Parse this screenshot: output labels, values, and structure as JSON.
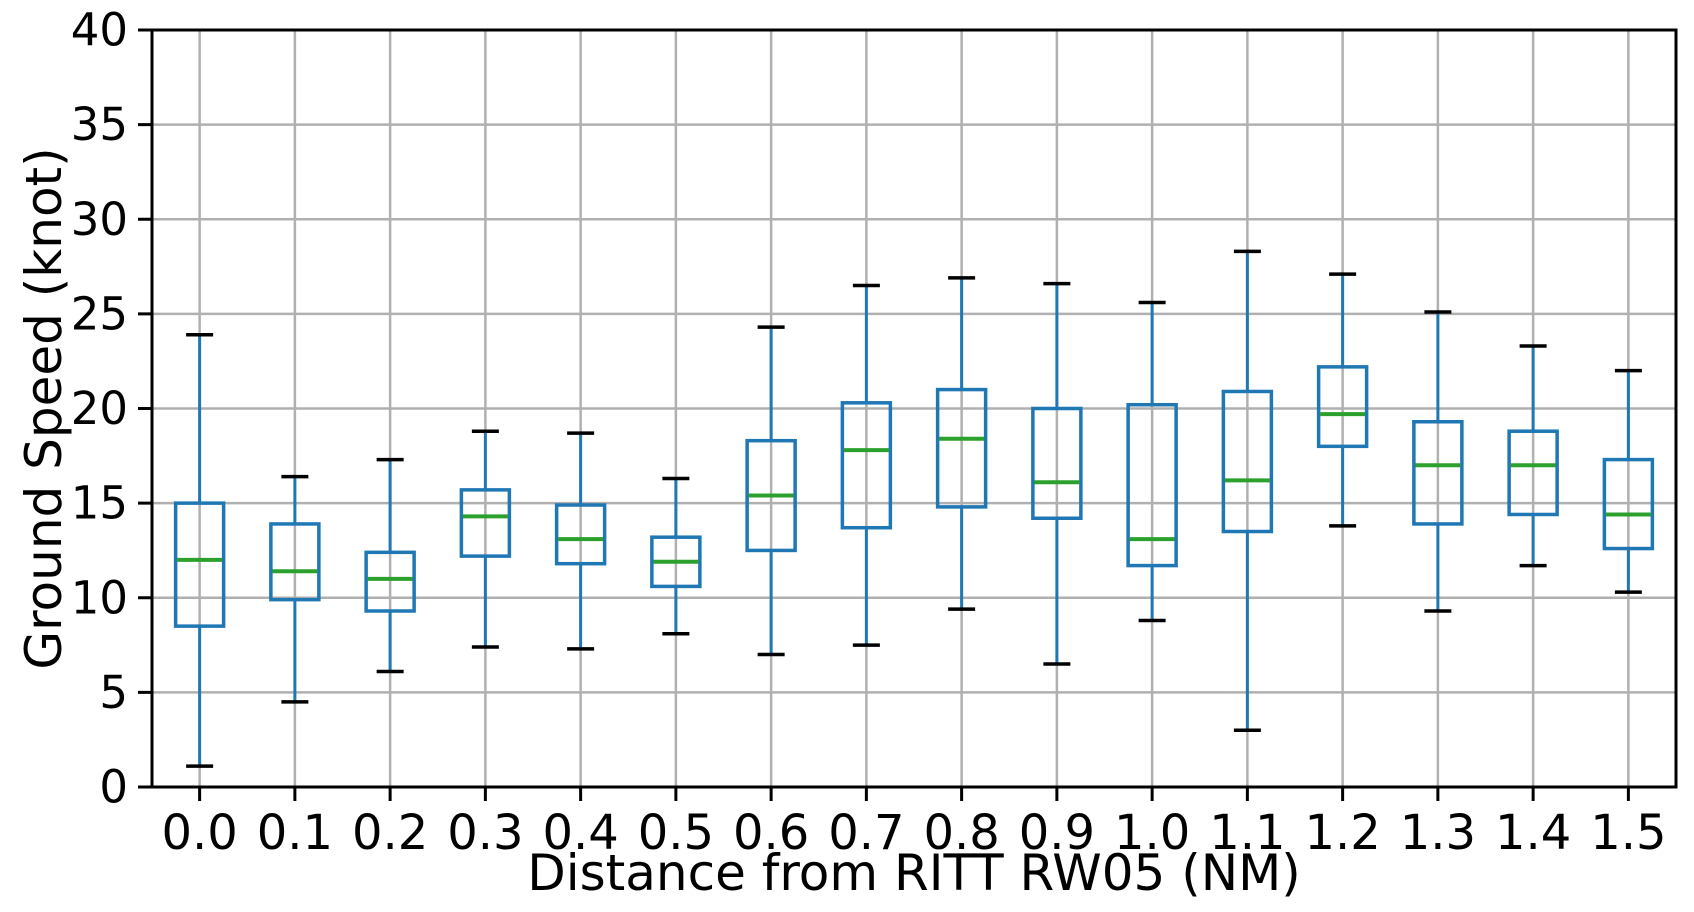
{
  "chart_data": {
    "type": "boxplot",
    "title": "",
    "xlabel": "Distance from RITT RW05 (NM)",
    "ylabel": "Ground Speed (knot)",
    "x_tick_labels": [
      "0.0",
      "0.1",
      "0.2",
      "0.3",
      "0.4",
      "0.5",
      "0.6",
      "0.7",
      "0.8",
      "0.9",
      "1.0",
      "1.1",
      "1.2",
      "1.3",
      "1.4",
      "1.5"
    ],
    "y_ticks": [
      0,
      5,
      10,
      15,
      20,
      25,
      30,
      35,
      40
    ],
    "ylim": [
      0,
      40
    ],
    "grid": true,
    "legend": "none",
    "colors": {
      "box": "#1f77b4",
      "whisker": "#1f77b4",
      "cap": "#000000",
      "median": "#2ca02c",
      "grid": "#b0b0b0",
      "spine": "#000000",
      "background": "#ffffff"
    },
    "series": [
      {
        "x": "0.0",
        "whislo": 1.1,
        "q1": 8.5,
        "med": 12.0,
        "q3": 15.0,
        "whishi": 23.9
      },
      {
        "x": "0.1",
        "whislo": 4.5,
        "q1": 9.9,
        "med": 11.4,
        "q3": 13.9,
        "whishi": 16.4
      },
      {
        "x": "0.2",
        "whislo": 6.1,
        "q1": 9.3,
        "med": 11.0,
        "q3": 12.4,
        "whishi": 17.3
      },
      {
        "x": "0.3",
        "whislo": 7.4,
        "q1": 12.2,
        "med": 14.3,
        "q3": 15.7,
        "whishi": 18.8
      },
      {
        "x": "0.4",
        "whislo": 7.3,
        "q1": 11.8,
        "med": 13.1,
        "q3": 14.9,
        "whishi": 18.7
      },
      {
        "x": "0.5",
        "whislo": 8.1,
        "q1": 10.6,
        "med": 11.9,
        "q3": 13.2,
        "whishi": 16.3
      },
      {
        "x": "0.6",
        "whislo": 7.0,
        "q1": 12.5,
        "med": 15.4,
        "q3": 18.3,
        "whishi": 24.3
      },
      {
        "x": "0.7",
        "whislo": 7.5,
        "q1": 13.7,
        "med": 17.8,
        "q3": 20.3,
        "whishi": 26.5
      },
      {
        "x": "0.8",
        "whislo": 9.4,
        "q1": 14.8,
        "med": 18.4,
        "q3": 21.0,
        "whishi": 26.9
      },
      {
        "x": "0.9",
        "whislo": 6.5,
        "q1": 14.2,
        "med": 16.1,
        "q3": 20.0,
        "whishi": 26.6
      },
      {
        "x": "1.0",
        "whislo": 8.8,
        "q1": 11.7,
        "med": 13.1,
        "q3": 20.2,
        "whishi": 25.6
      },
      {
        "x": "1.1",
        "whislo": 3.0,
        "q1": 13.5,
        "med": 16.2,
        "q3": 20.9,
        "whishi": 28.3
      },
      {
        "x": "1.2",
        "whislo": 13.8,
        "q1": 18.0,
        "med": 19.7,
        "q3": 22.2,
        "whishi": 27.1
      },
      {
        "x": "1.3",
        "whislo": 9.3,
        "q1": 13.9,
        "med": 17.0,
        "q3": 19.3,
        "whishi": 25.1
      },
      {
        "x": "1.4",
        "whislo": 11.7,
        "q1": 14.4,
        "med": 17.0,
        "q3": 18.8,
        "whishi": 23.3
      },
      {
        "x": "1.5",
        "whislo": 10.3,
        "q1": 12.6,
        "med": 14.4,
        "q3": 17.3,
        "whishi": 22.0
      }
    ]
  }
}
